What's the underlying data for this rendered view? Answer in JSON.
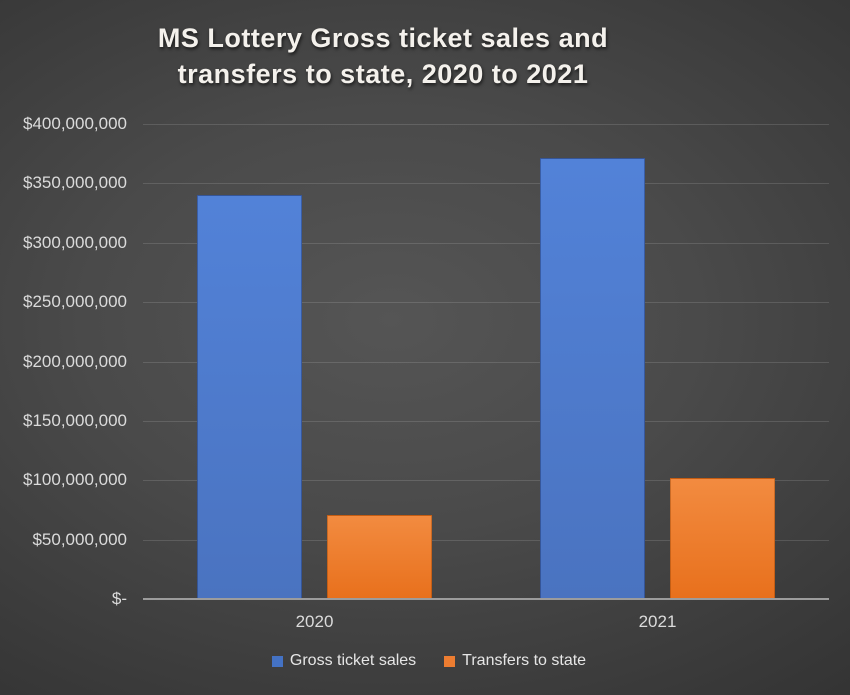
{
  "title": {
    "line1": "MS Lottery Gross ticket sales and",
    "line2": "transfers to state, 2020 to 2021"
  },
  "chart_data": {
    "type": "bar",
    "title": "MS Lottery Gross ticket sales and transfers to state, 2020 to 2021",
    "categories": [
      "2020",
      "2021"
    ],
    "series": [
      {
        "name": "Gross ticket sales",
        "values": [
          340000000,
          371000000
        ],
        "swatch_color": "#4472c4",
        "fill_top": "#5282d8",
        "fill_bottom": "#4a73c0"
      },
      {
        "name": "Transfers to state",
        "values": [
          71000000,
          102000000
        ],
        "swatch_color": "#ed7d31",
        "fill_top": "#f28b40",
        "fill_bottom": "#e8701c"
      }
    ],
    "y_axis": {
      "min": 0,
      "max": 400000000,
      "step": 50000000,
      "tick_labels": [
        "$-",
        "$50,000,000",
        "$100,000,000",
        "$150,000,000",
        "$200,000,000",
        "$250,000,000",
        "$300,000,000",
        "$350,000,000",
        "$400,000,000"
      ]
    },
    "xlabel": "",
    "ylabel": "",
    "grid": true,
    "legend_position": "bottom"
  },
  "colors": {
    "background_center": "#4f4f4f",
    "background_corner": "#242424",
    "gridline": "#5c5c5c",
    "axis_line": "#9c9c9c",
    "tick_text": "#dbdbdb",
    "title_text": "#f4f1ec"
  }
}
